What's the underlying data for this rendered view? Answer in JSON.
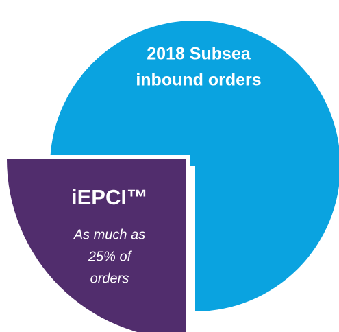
{
  "chart_data": {
    "type": "pie",
    "categories": [
      [
        "2018 Subsea",
        "inbound orders"
      ],
      [
        "iEPCI™"
      ]
    ],
    "values": [
      75,
      25
    ],
    "colors": [
      "#0aa3e0",
      "#512d6d"
    ],
    "annotation": [
      "As much as",
      "25% of",
      "orders"
    ]
  }
}
